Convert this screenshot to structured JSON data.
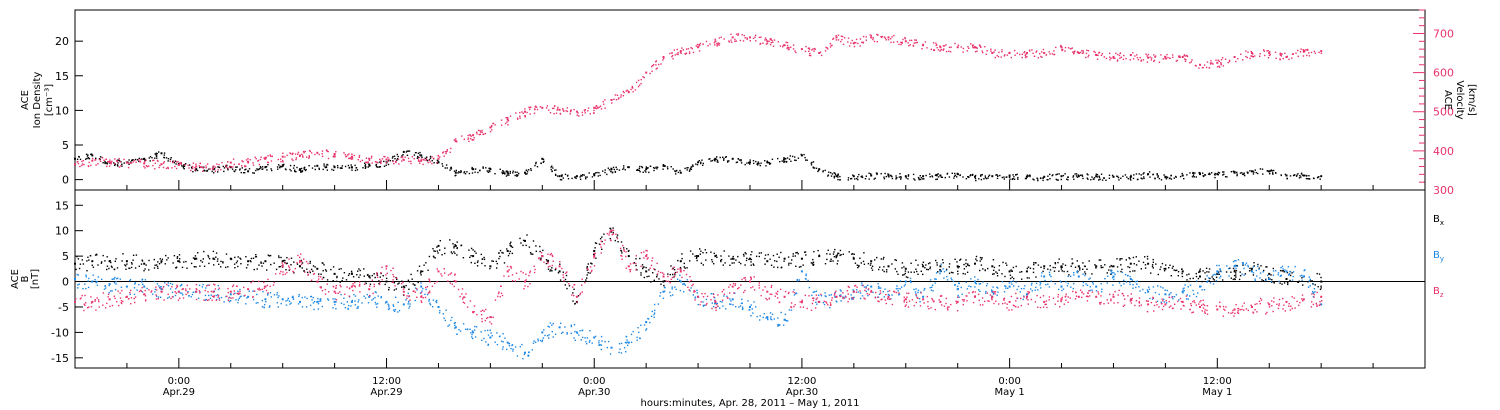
{
  "colors": {
    "black": "#000000",
    "red": "#e8336b",
    "blue": "#1e88e5"
  },
  "x_axis": {
    "label": "hours:minutes, Apr. 28, 2011 – May  1, 2011",
    "ticks": [
      {
        "hours": 0,
        "line1": "0:00",
        "line2": "Apr.29"
      },
      {
        "hours": 12,
        "line1": "12:00",
        "line2": "Apr.29"
      },
      {
        "hours": 24,
        "line1": "0:00",
        "line2": "Apr.30"
      },
      {
        "hours": 36,
        "line1": "12:00",
        "line2": "Apr.30"
      },
      {
        "hours": 48,
        "line1": "0:00",
        "line2": "May 1"
      },
      {
        "hours": 60,
        "line1": "12:00",
        "line2": "May 1"
      }
    ],
    "range_hours_from_apr29": [
      -6,
      72
    ]
  },
  "chart_data": [
    {
      "type": "scatter",
      "panel": "top",
      "ylabel_left": [
        "ACE",
        "Ion Density",
        "[cm⁻³]"
      ],
      "ylabel_right": [
        "ACE",
        "Velocity",
        "[km/s]"
      ],
      "ylim_left": [
        -1.5,
        24.5
      ],
      "ylim_right": [
        300,
        760
      ],
      "left_ticks": [
        0,
        5,
        10,
        15,
        20
      ],
      "right_ticks": [
        300,
        400,
        500,
        600,
        700
      ],
      "series": [
        {
          "axis": "left",
          "color_key": "black",
          "x": [
            -6,
            -5,
            -4,
            -3,
            -2,
            -1,
            0,
            1,
            2,
            3,
            4,
            5,
            6,
            7,
            8,
            9,
            10,
            11,
            12,
            13,
            14,
            15,
            16,
            17,
            18,
            19,
            20,
            21,
            22,
            23,
            24,
            25,
            26,
            27,
            28,
            29,
            30,
            31,
            32,
            33,
            34,
            35,
            36,
            37,
            38,
            39,
            40,
            41,
            42,
            43,
            44,
            45,
            46,
            47,
            48,
            49,
            50,
            51,
            52,
            53,
            54,
            55,
            56,
            57,
            58,
            59,
            60,
            61,
            62,
            63,
            64,
            65,
            66
          ],
          "y": [
            3.0,
            3.5,
            2.5,
            2.5,
            3.0,
            3.8,
            2.2,
            1.5,
            1.5,
            1.8,
            1.2,
            1.8,
            2.0,
            1.5,
            2.0,
            1.8,
            1.8,
            2.2,
            2.5,
            4.0,
            3.5,
            2.5,
            1.0,
            1.5,
            1.5,
            1.0,
            1.0,
            3.0,
            0.5,
            0.5,
            0.8,
            1.5,
            1.8,
            1.5,
            2.0,
            1.0,
            2.5,
            3.0,
            3.0,
            2.5,
            2.5,
            3.0,
            3.5,
            1.5,
            0.5,
            0.5,
            0.6,
            0.6,
            0.5,
            0.5,
            0.6,
            0.8,
            0.4,
            0.5,
            0.6,
            0.4,
            0.4,
            0.5,
            0.5,
            0.5,
            0.4,
            0.4,
            0.8,
            0.4,
            0.6,
            0.8,
            0.8,
            1.0,
            1.2,
            1.2,
            0.6,
            0.6,
            0.5
          ]
        },
        {
          "axis": "right",
          "color_key": "red",
          "x": [
            -6,
            -5,
            -4,
            -3,
            -2,
            -1,
            0,
            1,
            2,
            3,
            4,
            5,
            6,
            7,
            8,
            9,
            10,
            11,
            12,
            13,
            14,
            15,
            16,
            17,
            18,
            19,
            20,
            21,
            22,
            23,
            24,
            25,
            26,
            27,
            28,
            29,
            30,
            31,
            32,
            33,
            34,
            35,
            36,
            37,
            38,
            39,
            40,
            41,
            42,
            43,
            44,
            45,
            46,
            47,
            48,
            49,
            50,
            51,
            52,
            53,
            54,
            55,
            56,
            57,
            58,
            59,
            60,
            61,
            62,
            63,
            64,
            65,
            66
          ],
          "y": [
            365,
            375,
            372,
            370,
            368,
            366,
            364,
            360,
            360,
            370,
            372,
            380,
            385,
            388,
            395,
            392,
            385,
            380,
            378,
            377,
            375,
            380,
            425,
            440,
            460,
            480,
            500,
            510,
            505,
            500,
            510,
            530,
            550,
            600,
            640,
            655,
            665,
            680,
            690,
            690,
            680,
            670,
            660,
            650,
            690,
            675,
            690,
            690,
            680,
            670,
            665,
            665,
            665,
            650,
            650,
            650,
            650,
            665,
            650,
            645,
            640,
            645,
            638,
            640,
            640,
            620,
            625,
            640,
            650,
            650,
            640,
            655,
            655
          ]
        }
      ]
    },
    {
      "type": "scatter",
      "panel": "bottom",
      "ylabel_left": [
        "ACE",
        "B",
        "[nT]"
      ],
      "ylim": [
        -17,
        18
      ],
      "ticks": [
        -15,
        -10,
        -5,
        0,
        5,
        10,
        15
      ],
      "zero_line": true,
      "legend": [
        "Bx",
        "By",
        "Bz"
      ],
      "series": [
        {
          "name": "Bx",
          "color_key": "black",
          "x": [
            -6,
            -5,
            -4,
            -3,
            -2,
            -1,
            0,
            1,
            2,
            3,
            4,
            5,
            6,
            7,
            8,
            9,
            10,
            11,
            12,
            13,
            14,
            15,
            16,
            17,
            18,
            19,
            20,
            21,
            22,
            23,
            24,
            25,
            26,
            27,
            28,
            29,
            30,
            31,
            32,
            33,
            34,
            35,
            36,
            37,
            38,
            39,
            40,
            41,
            42,
            43,
            44,
            45,
            46,
            47,
            48,
            49,
            50,
            51,
            52,
            53,
            54,
            55,
            56,
            57,
            58,
            59,
            60,
            61,
            62,
            63,
            64,
            65,
            66
          ],
          "y": [
            3.5,
            4.0,
            4.0,
            4.0,
            3.5,
            4.0,
            4.0,
            4.5,
            4.5,
            4.5,
            4.0,
            4.0,
            4.0,
            3.0,
            2.5,
            1.5,
            1.5,
            1.0,
            0.0,
            -1.0,
            2.0,
            7.0,
            7.0,
            5.0,
            3.0,
            6.0,
            8.0,
            5.0,
            2.0,
            -4.0,
            6.0,
            10.0,
            5.0,
            2.0,
            0.0,
            4.0,
            5.0,
            5.0,
            4.5,
            4.5,
            4.0,
            4.5,
            4.5,
            5.0,
            5.0,
            4.5,
            4.0,
            3.0,
            2.5,
            3.0,
            3.0,
            3.0,
            3.5,
            3.0,
            2.0,
            2.0,
            3.0,
            3.0,
            3.0,
            3.0,
            3.0,
            3.5,
            3.5,
            2.5,
            2.0,
            1.0,
            1.5,
            2.0,
            2.5,
            1.5,
            0.5,
            1.0,
            0.0
          ]
        },
        {
          "name": "By",
          "color_key": "blue",
          "x": [
            -6,
            -5,
            -4,
            -3,
            -2,
            -1,
            0,
            1,
            2,
            3,
            4,
            5,
            6,
            7,
            8,
            9,
            10,
            11,
            12,
            13,
            14,
            15,
            16,
            17,
            18,
            19,
            20,
            21,
            22,
            23,
            24,
            25,
            26,
            27,
            28,
            29,
            30,
            31,
            32,
            33,
            34,
            35,
            36,
            37,
            38,
            39,
            40,
            41,
            42,
            43,
            44,
            45,
            46,
            47,
            48,
            49,
            50,
            51,
            52,
            53,
            54,
            55,
            56,
            57,
            58,
            59,
            60,
            61,
            62,
            63,
            64,
            65,
            66
          ],
          "y": [
            0.5,
            0.0,
            -0.5,
            -1.0,
            -1.0,
            -1.5,
            -2.0,
            -2.0,
            -2.0,
            -2.5,
            -3.0,
            -3.5,
            -3.5,
            -4.0,
            -4.0,
            -4.0,
            -4.0,
            -3.0,
            -4.0,
            -4.5,
            -1.0,
            -5.0,
            -9.0,
            -10.0,
            -11.0,
            -12.0,
            -14.0,
            -10.0,
            -9.0,
            -10.0,
            -11.0,
            -13.0,
            -12.0,
            -8.0,
            -2.0,
            0.0,
            -3.0,
            -4.0,
            -3.5,
            -5.0,
            -7.0,
            -7.5,
            2.0,
            -4.0,
            -3.0,
            -2.0,
            -1.0,
            -3.0,
            0.0,
            -3.0,
            2.0,
            -1.5,
            0.0,
            -2.0,
            -1.0,
            -2.5,
            1.0,
            -1.0,
            1.0,
            -1.0,
            1.0,
            0.5,
            -2.0,
            -2.5,
            -2.0,
            -1.0,
            2.0,
            3.0,
            2.0,
            0.5,
            2.0,
            1.0,
            -4.5
          ]
        },
        {
          "name": "Bz",
          "color_key": "red",
          "x": [
            -6,
            -5,
            -4,
            -3,
            -2,
            -1,
            0,
            1,
            2,
            3,
            4,
            5,
            6,
            7,
            8,
            9,
            10,
            11,
            12,
            13,
            14,
            15,
            16,
            17,
            18,
            19,
            20,
            21,
            22,
            23,
            24,
            25,
            26,
            27,
            28,
            29,
            30,
            31,
            32,
            33,
            34,
            35,
            36,
            37,
            38,
            39,
            40,
            41,
            42,
            43,
            44,
            45,
            46,
            47,
            48,
            49,
            50,
            51,
            52,
            53,
            54,
            55,
            56,
            57,
            58,
            59,
            60,
            61,
            62,
            63,
            64,
            65,
            66
          ],
          "y": [
            -4.0,
            -4.0,
            -3.5,
            -3.0,
            -2.5,
            -2.0,
            -2.0,
            -2.0,
            -2.0,
            -2.0,
            -1.5,
            -1.0,
            3.0,
            4.0,
            0.0,
            -2.0,
            -1.0,
            -1.5,
            3.0,
            -2.0,
            -3.0,
            2.0,
            0.0,
            -6.0,
            -7.0,
            2.0,
            0.0,
            5.0,
            3.0,
            -3.0,
            5.0,
            10.0,
            3.0,
            5.0,
            1.0,
            2.0,
            -3.0,
            -4.0,
            -1.0,
            0.0,
            -2.0,
            -3.0,
            -4.0,
            -4.0,
            -3.0,
            -2.0,
            -2.0,
            -3.0,
            -3.5,
            -3.5,
            -4.0,
            -4.0,
            -3.0,
            -3.0,
            -4.0,
            -3.0,
            -4.0,
            -3.5,
            -3.0,
            -3.0,
            -3.0,
            -3.5,
            -4.5,
            -4.5,
            -4.0,
            -5.0,
            -5.5,
            -5.5,
            -5.0,
            -4.5,
            -4.0,
            -3.5,
            -3.0
          ]
        }
      ]
    }
  ]
}
